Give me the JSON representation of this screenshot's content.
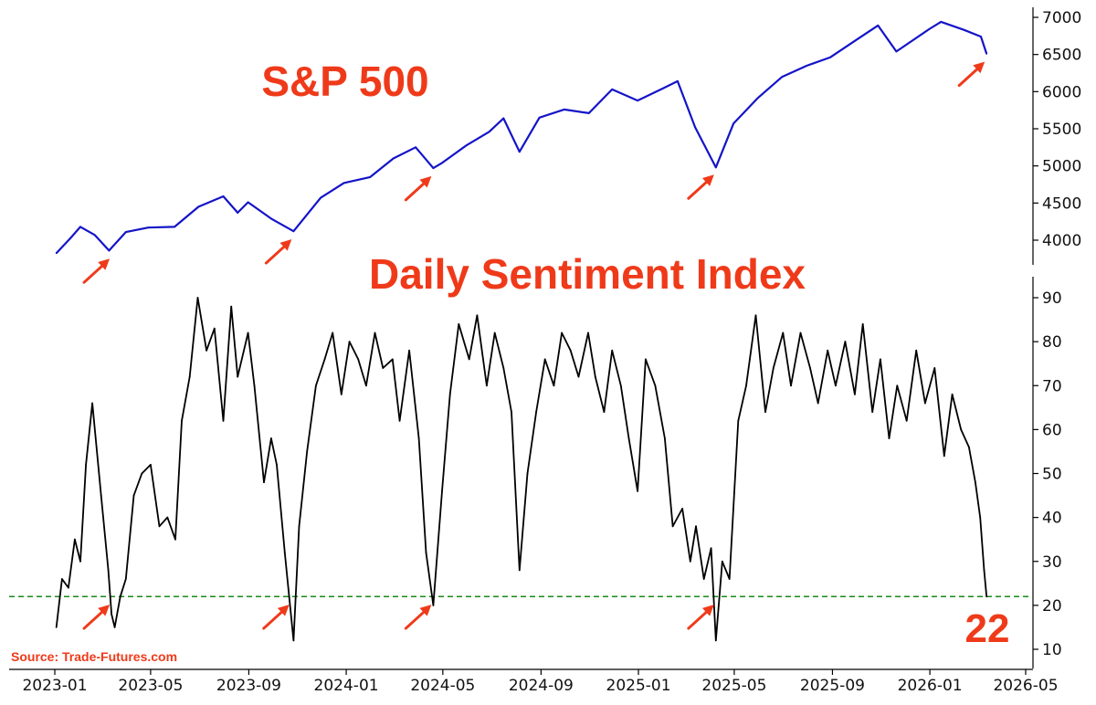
{
  "source": "Source: Trade-Futures.com",
  "colors": {
    "sp_line": "#1414c8",
    "dsi_line": "#000000",
    "threshold": "#1a8a1a",
    "accent": "#ef3a1a"
  },
  "chart_data": [
    {
      "type": "line",
      "title": "S&P 500",
      "y_axis_side": "right",
      "ylim": [
        3650,
        7120
      ],
      "y_ticks": [
        4000,
        4500,
        5000,
        5500,
        6000,
        6500,
        7000
      ],
      "series": [
        {
          "x": [
            "2023-01-03",
            "2023-01-20",
            "2023-02-02",
            "2023-02-20",
            "2023-03-10",
            "2023-03-31",
            "2023-04-28",
            "2023-05-31",
            "2023-06-30",
            "2023-07-31",
            "2023-08-18",
            "2023-08-31",
            "2023-09-29",
            "2023-10-27",
            "2023-11-30",
            "2023-12-29",
            "2024-01-31",
            "2024-02-29",
            "2024-03-28",
            "2024-04-19",
            "2024-04-30",
            "2024-05-31",
            "2024-06-28",
            "2024-07-16",
            "2024-08-05",
            "2024-08-30",
            "2024-09-30",
            "2024-10-31",
            "2024-11-29",
            "2024-12-31",
            "2025-01-31",
            "2025-02-19",
            "2025-03-13",
            "2025-04-08",
            "2025-04-30",
            "2025-05-30",
            "2025-06-30",
            "2025-07-31",
            "2025-08-29",
            "2025-09-30",
            "2025-10-28",
            "2025-11-20",
            "2025-12-31",
            "2026-01-15",
            "2026-02-13",
            "2026-03-06",
            "2026-03-13"
          ],
          "values": [
            3825,
            4020,
            4180,
            4070,
            3860,
            4110,
            4170,
            4180,
            4450,
            4590,
            4370,
            4510,
            4290,
            4120,
            4570,
            4770,
            4850,
            5100,
            5250,
            4970,
            5040,
            5280,
            5460,
            5640,
            5190,
            5650,
            5760,
            5710,
            6030,
            5880,
            6040,
            6140,
            5520,
            4980,
            5570,
            5910,
            6200,
            6350,
            6460,
            6690,
            6890,
            6540,
            6840,
            6940,
            6830,
            6740,
            6510
          ]
        }
      ],
      "annotations": [
        {
          "type": "arrow",
          "x": "2023-03-13",
          "target": 3850
        },
        {
          "type": "arrow",
          "x": "2023-10-27",
          "target": 4110
        },
        {
          "type": "arrow",
          "x": "2024-04-19",
          "target": 4960
        },
        {
          "type": "arrow",
          "x": "2025-04-08",
          "target": 4980
        },
        {
          "type": "arrow",
          "x": "2026-03-13",
          "target": 6500
        }
      ]
    },
    {
      "type": "line",
      "title": "Daily Sentiment Index",
      "y_axis_side": "right",
      "ylim": [
        6,
        96
      ],
      "y_ticks": [
        10,
        20,
        30,
        40,
        50,
        60,
        70,
        80,
        90
      ],
      "x_ticks": [
        "2023-01",
        "2023-05",
        "2023-09",
        "2024-01",
        "2024-05",
        "2024-09",
        "2025-01",
        "2025-05",
        "2025-09",
        "2026-01",
        "2026-05"
      ],
      "threshold": 22,
      "last_value_label": "22",
      "series": [
        {
          "x": [
            "2023-01-03",
            "2023-01-10",
            "2023-01-18",
            "2023-01-26",
            "2023-02-02",
            "2023-02-09",
            "2023-02-17",
            "2023-02-28",
            "2023-03-09",
            "2023-03-13",
            "2023-03-17",
            "2023-03-24",
            "2023-03-31",
            "2023-04-10",
            "2023-04-20",
            "2023-05-01",
            "2023-05-12",
            "2023-05-22",
            "2023-06-01",
            "2023-06-09",
            "2023-06-19",
            "2023-06-29",
            "2023-07-10",
            "2023-07-20",
            "2023-07-31",
            "2023-08-10",
            "2023-08-18",
            "2023-08-31",
            "2023-09-08",
            "2023-09-20",
            "2023-09-29",
            "2023-10-06",
            "2023-10-16",
            "2023-10-27",
            "2023-11-03",
            "2023-11-13",
            "2023-11-24",
            "2023-12-05",
            "2023-12-15",
            "2023-12-26",
            "2024-01-05",
            "2024-01-16",
            "2024-01-26",
            "2024-02-06",
            "2024-02-16",
            "2024-02-28",
            "2024-03-08",
            "2024-03-20",
            "2024-04-01",
            "2024-04-10",
            "2024-04-19",
            "2024-04-30",
            "2024-05-10",
            "2024-05-21",
            "2024-06-03",
            "2024-06-13",
            "2024-06-25",
            "2024-07-05",
            "2024-07-16",
            "2024-07-26",
            "2024-08-05",
            "2024-08-15",
            "2024-08-26",
            "2024-09-06",
            "2024-09-17",
            "2024-09-27",
            "2024-10-08",
            "2024-10-18",
            "2024-10-30",
            "2024-11-08",
            "2024-11-19",
            "2024-11-29",
            "2024-12-10",
            "2024-12-20",
            "2024-12-31",
            "2025-01-10",
            "2025-01-22",
            "2025-02-03",
            "2025-02-13",
            "2025-02-25",
            "2025-03-07",
            "2025-03-14",
            "2025-03-24",
            "2025-04-02",
            "2025-04-08",
            "2025-04-16",
            "2025-04-25",
            "2025-05-06",
            "2025-05-16",
            "2025-05-28",
            "2025-06-09",
            "2025-06-19",
            "2025-07-01",
            "2025-07-11",
            "2025-07-23",
            "2025-08-04",
            "2025-08-14",
            "2025-08-26",
            "2025-09-05",
            "2025-09-17",
            "2025-09-29",
            "2025-10-09",
            "2025-10-21",
            "2025-10-31",
            "2025-11-11",
            "2025-11-21",
            "2025-12-03",
            "2025-12-15",
            "2025-12-26",
            "2026-01-07",
            "2026-01-19",
            "2026-01-29",
            "2026-02-09",
            "2026-02-19",
            "2026-02-27",
            "2026-03-05",
            "2026-03-10",
            "2026-03-13"
          ],
          "values": [
            15,
            26,
            24,
            35,
            30,
            52,
            66,
            45,
            28,
            18,
            15,
            22,
            26,
            45,
            50,
            52,
            38,
            40,
            35,
            62,
            72,
            90,
            78,
            83,
            62,
            88,
            72,
            82,
            70,
            48,
            58,
            52,
            32,
            12,
            38,
            55,
            70,
            76,
            82,
            68,
            80,
            76,
            70,
            82,
            74,
            76,
            62,
            78,
            58,
            32,
            20,
            46,
            68,
            84,
            76,
            86,
            70,
            82,
            74,
            64,
            28,
            50,
            64,
            76,
            70,
            82,
            78,
            72,
            82,
            72,
            64,
            78,
            70,
            58,
            46,
            76,
            70,
            58,
            38,
            42,
            30,
            38,
            26,
            33,
            12,
            30,
            26,
            62,
            70,
            86,
            64,
            74,
            82,
            70,
            82,
            74,
            66,
            78,
            70,
            80,
            68,
            84,
            64,
            76,
            58,
            70,
            62,
            78,
            66,
            74,
            54,
            68,
            60,
            56,
            48,
            40,
            28,
            22
          ]
        }
      ],
      "annotations": [
        {
          "type": "arrow",
          "x": "2023-03-13",
          "target": 21
        },
        {
          "type": "arrow",
          "x": "2023-10-24",
          "target": 21
        },
        {
          "type": "arrow",
          "x": "2024-04-19",
          "target": 21
        },
        {
          "type": "arrow",
          "x": "2025-04-08",
          "target": 21
        }
      ]
    }
  ]
}
